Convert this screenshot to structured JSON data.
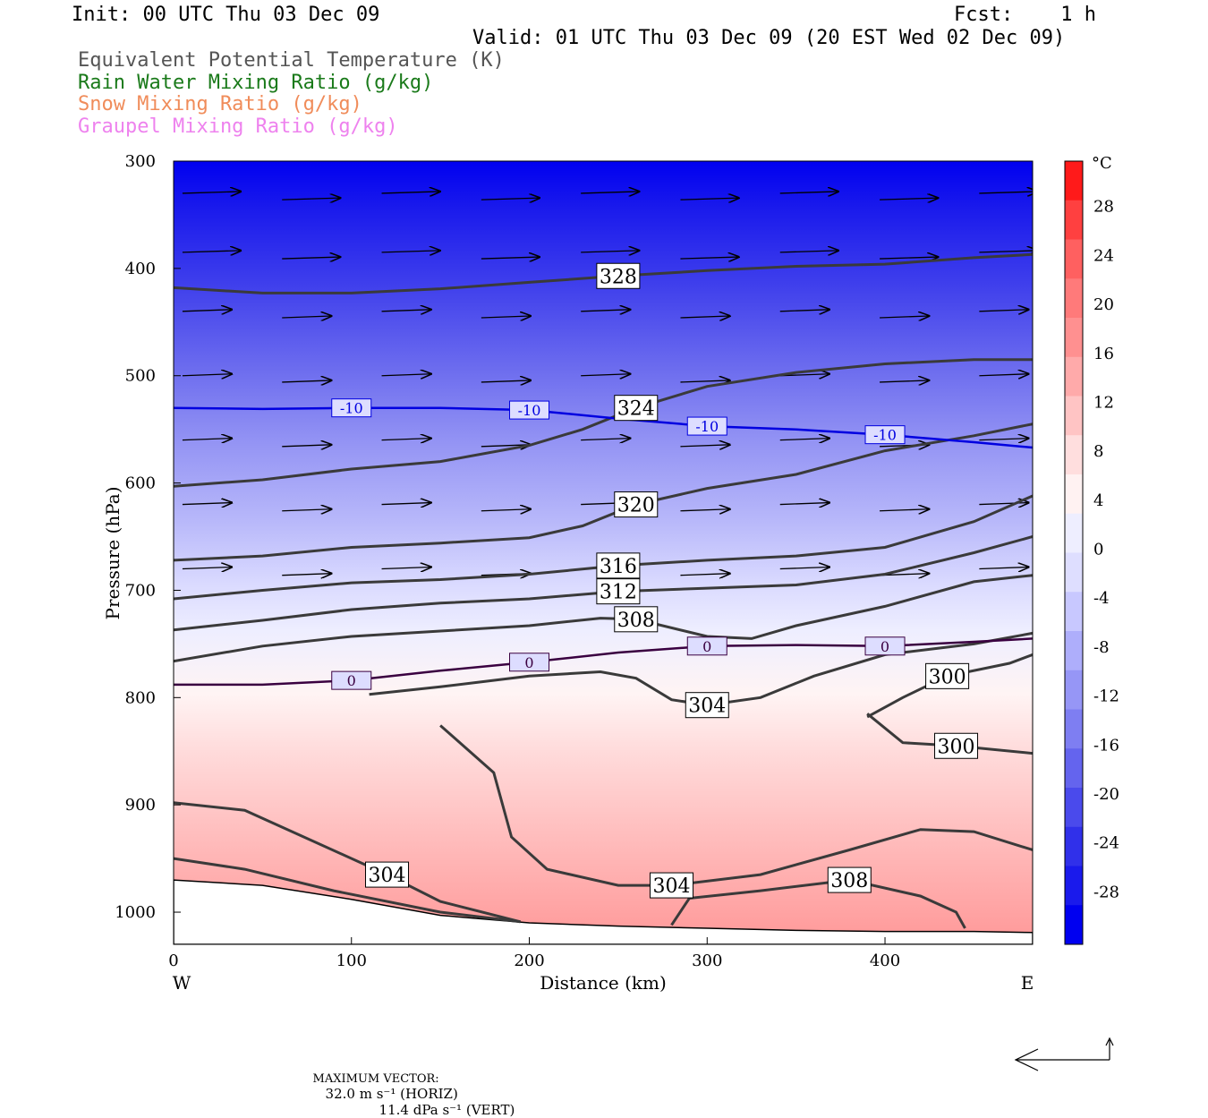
{
  "header": {
    "init": "Init: 00 UTC Thu 03 Dec 09",
    "fcst": "Fcst:    1 h",
    "valid": "Valid: 01 UTC Thu 03 Dec 09 (20 EST Wed 02 Dec 09)"
  },
  "legend": [
    {
      "text": "Equivalent Potential Temperature (K)",
      "color": "#555555"
    },
    {
      "text": "Rain Water Mixing Ratio (g/kg)",
      "color": "#1a7a1a"
    },
    {
      "text": "Snow Mixing Ratio (g/kg)",
      "color": "#f08c5a"
    },
    {
      "text": "Graupel Mixing Ratio (g/kg)",
      "color": "#ee82ee"
    }
  ],
  "footer": {
    "label": "MAXIMUM VECTOR:",
    "horiz": "32.0 m s⁻¹ (HORIZ)",
    "vert": "11.4 dPa s⁻¹ (VERT)"
  },
  "chart_data": {
    "type": "heatmap",
    "title": "",
    "xlabel": "Distance (km)",
    "ylabel": "Pressure (hPa)",
    "xlim": [
      0,
      483
    ],
    "ylim": [
      1030,
      300
    ],
    "x_ticks": [
      0,
      100,
      200,
      300,
      400
    ],
    "y_ticks": [
      300,
      400,
      500,
      600,
      700,
      800,
      900,
      1000
    ],
    "x_end_labels": {
      "left": "W",
      "right": "E"
    },
    "colorbar": {
      "unit": "°C",
      "levels": [
        28,
        24,
        20,
        16,
        12,
        8,
        4,
        0,
        -4,
        -8,
        -12,
        -16,
        -20,
        -24,
        -28
      ],
      "colors": [
        "#ff1a1a",
        "#ff4040",
        "#ff6060",
        "#ff7a7a",
        "#ff9090",
        "#ffaaaa",
        "#ffc4c4",
        "#ffdede",
        "#fff2f2",
        "#eeeeff",
        "#dedeff",
        "#c8c8ff",
        "#aeaefb",
        "#9696f6",
        "#7e7ef2",
        "#6464ee",
        "#4a4aec",
        "#3030ea",
        "#1a1aec",
        "#0000f0"
      ]
    },
    "temperature_isotherms": [
      {
        "label": "-10",
        "color": "#0000e0",
        "points": [
          [
            0,
            530
          ],
          [
            50,
            531
          ],
          [
            100,
            530
          ],
          [
            150,
            530
          ],
          [
            200,
            532
          ],
          [
            250,
            540
          ],
          [
            300,
            547
          ],
          [
            350,
            550
          ],
          [
            400,
            555
          ],
          [
            450,
            562
          ],
          [
            483,
            567
          ]
        ]
      },
      {
        "label": "0",
        "color": "#3a0040",
        "points": [
          [
            0,
            788
          ],
          [
            50,
            788
          ],
          [
            100,
            784
          ],
          [
            150,
            775
          ],
          [
            200,
            767
          ],
          [
            250,
            758
          ],
          [
            300,
            752
          ],
          [
            350,
            751
          ],
          [
            400,
            752
          ],
          [
            450,
            748
          ],
          [
            483,
            745
          ]
        ]
      }
    ],
    "theta_e_contours": [
      {
        "label": "328",
        "points": [
          [
            0,
            418
          ],
          [
            50,
            423
          ],
          [
            100,
            423
          ],
          [
            150,
            419
          ],
          [
            200,
            413
          ],
          [
            250,
            407
          ],
          [
            300,
            402
          ],
          [
            350,
            398
          ],
          [
            400,
            396
          ],
          [
            450,
            390
          ],
          [
            483,
            387
          ]
        ]
      },
      {
        "label": "324",
        "points": [
          [
            0,
            603
          ],
          [
            50,
            597
          ],
          [
            100,
            587
          ],
          [
            150,
            580
          ],
          [
            200,
            565
          ],
          [
            230,
            550
          ],
          [
            260,
            530
          ],
          [
            300,
            510
          ],
          [
            350,
            497
          ],
          [
            400,
            489
          ],
          [
            450,
            485
          ],
          [
            483,
            485
          ]
        ]
      },
      {
        "label": "320",
        "points": [
          [
            0,
            672
          ],
          [
            50,
            668
          ],
          [
            100,
            660
          ],
          [
            150,
            656
          ],
          [
            200,
            651
          ],
          [
            230,
            640
          ],
          [
            260,
            620
          ],
          [
            300,
            605
          ],
          [
            350,
            592
          ],
          [
            400,
            570
          ],
          [
            450,
            556
          ],
          [
            483,
            545
          ]
        ]
      },
      {
        "label": "316",
        "points": [
          [
            0,
            708
          ],
          [
            50,
            700
          ],
          [
            100,
            693
          ],
          [
            150,
            690
          ],
          [
            200,
            685
          ],
          [
            250,
            677
          ],
          [
            300,
            672
          ],
          [
            350,
            668
          ],
          [
            400,
            660
          ],
          [
            450,
            636
          ],
          [
            483,
            612
          ]
        ]
      },
      {
        "label": "312",
        "points": [
          [
            0,
            737
          ],
          [
            50,
            728
          ],
          [
            100,
            718
          ],
          [
            150,
            712
          ],
          [
            200,
            708
          ],
          [
            250,
            701
          ],
          [
            300,
            698
          ],
          [
            350,
            695
          ],
          [
            400,
            685
          ],
          [
            450,
            665
          ],
          [
            483,
            650
          ]
        ]
      },
      {
        "label": "308",
        "points": [
          [
            0,
            766
          ],
          [
            50,
            752
          ],
          [
            100,
            743
          ],
          [
            150,
            738
          ],
          [
            200,
            733
          ],
          [
            240,
            726
          ],
          [
            260,
            727
          ],
          [
            300,
            743
          ],
          [
            325,
            745
          ],
          [
            350,
            733
          ],
          [
            400,
            715
          ],
          [
            450,
            692
          ],
          [
            483,
            686
          ]
        ]
      },
      {
        "label": "304",
        "points": [
          [
            110,
            797
          ],
          [
            150,
            790
          ],
          [
            200,
            780
          ],
          [
            240,
            776
          ],
          [
            260,
            782
          ],
          [
            280,
            802
          ],
          [
            300,
            807
          ],
          [
            330,
            800
          ],
          [
            360,
            780
          ],
          [
            400,
            760
          ],
          [
            450,
            750
          ],
          [
            483,
            740
          ]
        ]
      },
      {
        "label": "304",
        "points": [
          [
            150,
            826
          ],
          [
            180,
            870
          ],
          [
            190,
            930
          ],
          [
            210,
            960
          ],
          [
            250,
            975
          ],
          [
            280,
            975
          ],
          [
            330,
            965
          ],
          [
            380,
            942
          ],
          [
            420,
            923
          ],
          [
            450,
            925
          ],
          [
            483,
            942
          ]
        ]
      },
      {
        "label": "304",
        "points": [
          [
            0,
            898
          ],
          [
            40,
            905
          ],
          [
            80,
            935
          ],
          [
            120,
            965
          ],
          [
            150,
            990
          ],
          [
            195,
            1009
          ]
        ]
      },
      {
        "label": "300",
        "points": [
          [
            390,
            818
          ],
          [
            410,
            800
          ],
          [
            435,
            780
          ],
          [
            470,
            768
          ],
          [
            483,
            760
          ]
        ]
      },
      {
        "label": "300",
        "points": [
          [
            390,
            815
          ],
          [
            410,
            842
          ],
          [
            440,
            845
          ],
          [
            483,
            852
          ]
        ]
      },
      {
        "label": "308",
        "points": [
          [
            280,
            1012
          ],
          [
            290,
            987
          ],
          [
            330,
            980
          ],
          [
            380,
            970
          ],
          [
            420,
            985
          ],
          [
            440,
            1000
          ],
          [
            445,
            1015
          ]
        ]
      },
      {
        "label": "",
        "points": [
          [
            0,
            950
          ],
          [
            40,
            960
          ],
          [
            90,
            980
          ],
          [
            150,
            1000
          ],
          [
            195,
            1009
          ]
        ]
      }
    ],
    "terrain": [
      [
        0,
        970
      ],
      [
        50,
        975
      ],
      [
        100,
        988
      ],
      [
        150,
        1003
      ],
      [
        200,
        1010
      ],
      [
        250,
        1013
      ],
      [
        300,
        1015
      ],
      [
        350,
        1017
      ],
      [
        400,
        1018
      ],
      [
        450,
        1018
      ],
      [
        483,
        1019
      ]
    ]
  }
}
